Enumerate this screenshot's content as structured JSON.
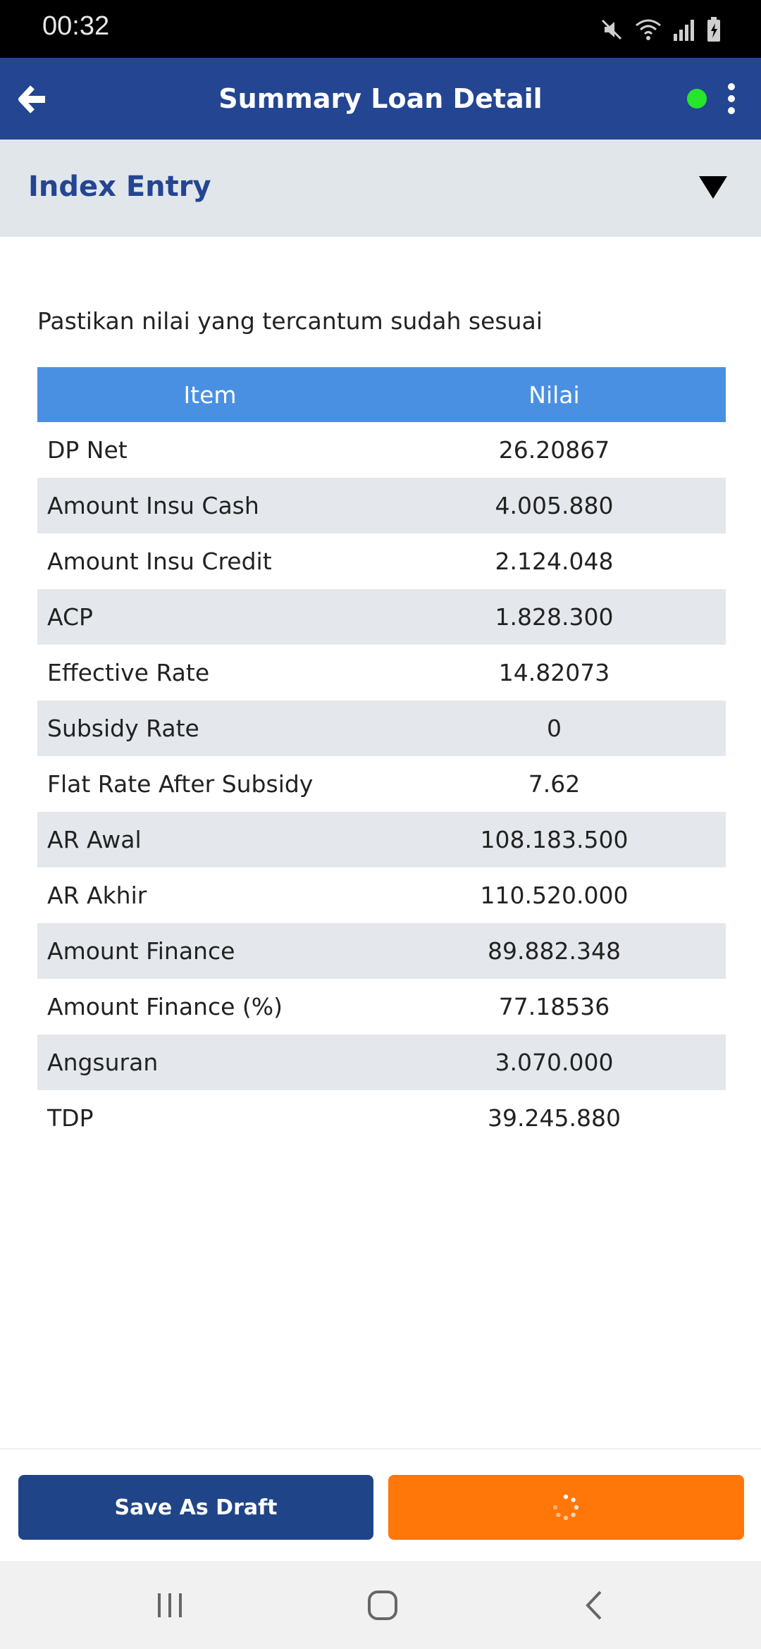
{
  "status_bar": {
    "time": "00:32",
    "icons": [
      "mute-icon",
      "wifi-icon",
      "signal-icon",
      "battery-icon"
    ]
  },
  "app_bar": {
    "title": "Summary Loan Detail",
    "back_icon": "arrow-left-icon",
    "status_color": "#27e52b",
    "menu_icon": "more-vertical-icon"
  },
  "section": {
    "title": "Index Entry",
    "toggle_icon": "triangle-down-icon"
  },
  "instruction": "Pastikan nilai yang tercantum sudah sesuai",
  "table": {
    "headers": {
      "item": "Item",
      "value": "Nilai"
    },
    "rows": [
      {
        "item": "DP Net",
        "value": "26.20867"
      },
      {
        "item": "Amount Insu Cash",
        "value": "4.005.880"
      },
      {
        "item": "Amount Insu Credit",
        "value": "2.124.048"
      },
      {
        "item": "ACP",
        "value": "1.828.300"
      },
      {
        "item": "Effective Rate",
        "value": "14.82073"
      },
      {
        "item": "Subsidy Rate",
        "value": "0"
      },
      {
        "item": "Flat Rate After Subsidy",
        "value": "7.62"
      },
      {
        "item": "AR Awal",
        "value": "108.183.500"
      },
      {
        "item": "AR Akhir",
        "value": "110.520.000"
      },
      {
        "item": "Amount Finance",
        "value": "89.882.348"
      },
      {
        "item": "Amount Finance (%)",
        "value": "77.18536"
      },
      {
        "item": "Angsuran",
        "value": "3.070.000"
      },
      {
        "item": "TDP",
        "value": "39.245.880"
      }
    ]
  },
  "actions": {
    "save_draft_label": "Save As Draft",
    "submit_icon": "loading-spinner-icon"
  },
  "colors": {
    "app_bar": "#234592",
    "table_header": "#4a90e2",
    "draft_button": "#1f4588",
    "submit_button": "#ff7609"
  },
  "nav_bar": {
    "icons": [
      "recent-apps-icon",
      "home-icon",
      "back-icon"
    ]
  }
}
